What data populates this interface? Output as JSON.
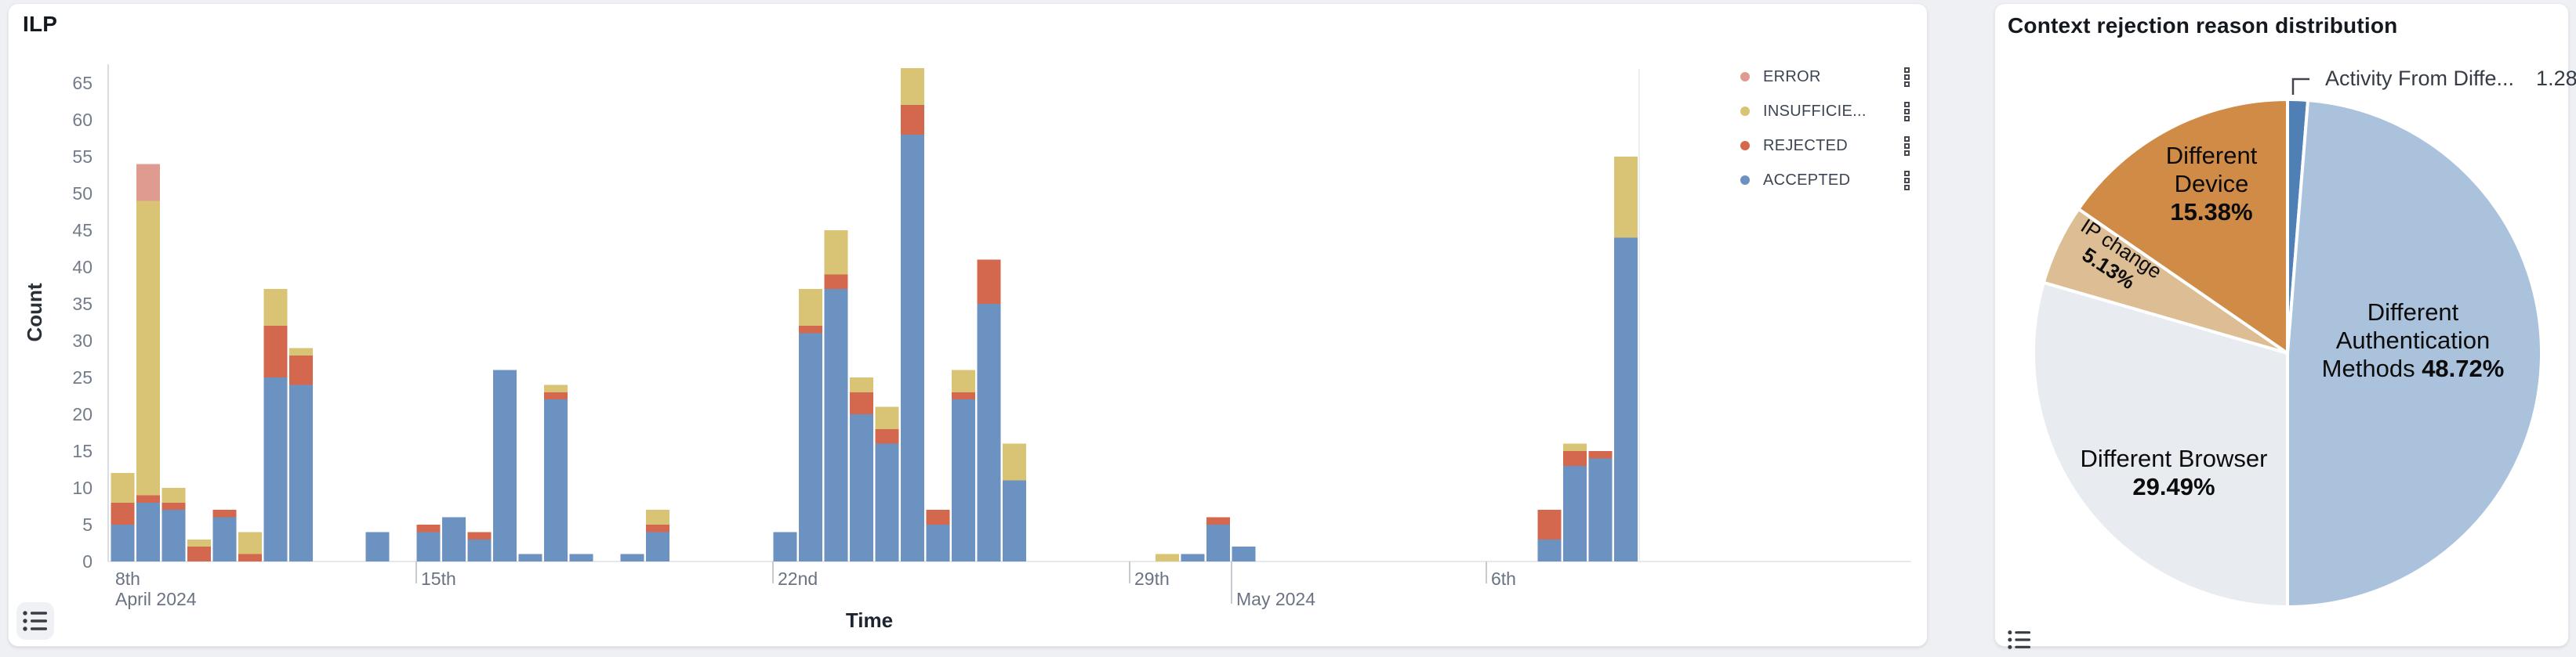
{
  "page": {
    "background": "#eef0f4"
  },
  "ilp_panel": {
    "title": "ILP",
    "y_axis_title": "Count",
    "x_axis_title": "Time",
    "legend_items": [
      {
        "label": "ERROR",
        "color": "#e09b91"
      },
      {
        "label": "INSUFFICIE...",
        "color": "#d8c474"
      },
      {
        "label": "REJECTED",
        "color": "#d4684f"
      },
      {
        "label": "ACCEPTED",
        "color": "#6c92c1"
      }
    ],
    "icons": {
      "legend_row_menu": "kebab-menu-icon",
      "bottom_left": "list-icon"
    }
  },
  "pie_panel": {
    "title": "Context rejection reason distribution",
    "callout": {
      "label": "Activity From Diffe...",
      "pct": "1.28%"
    },
    "icons": {
      "bottom_left": "list-icon"
    }
  },
  "chart_data": [
    {
      "type": "bar",
      "stacked": true,
      "title": "ILP",
      "xlabel": "Time",
      "ylabel": "Count",
      "ylim": [
        0,
        65
      ],
      "y_ticks": [
        0,
        5,
        10,
        15,
        20,
        25,
        30,
        35,
        40,
        45,
        50,
        55,
        60,
        65
      ],
      "x_unit": "12-hour buckets, Apr 9 2024 00:00 through May 9 2024 00:00",
      "x_ticks": [
        {
          "slot": 0,
          "label": "8th",
          "sublabel": "April 2024"
        },
        {
          "slot": 12,
          "label": "15th"
        },
        {
          "slot": 26,
          "label": "22nd"
        },
        {
          "slot": 40,
          "label": "29th"
        },
        {
          "slot": 44,
          "label": "May 2024",
          "month": true
        },
        {
          "slot": 54,
          "label": "6th"
        }
      ],
      "series": [
        {
          "name": "ACCEPTED",
          "color": "#6c92c1"
        },
        {
          "name": "REJECTED",
          "color": "#d4684f"
        },
        {
          "name": "INSUFFICIE...",
          "color": "#d8c474"
        },
        {
          "name": "ERROR",
          "color": "#e09b91"
        }
      ],
      "bars_columns": [
        "slot",
        "ACCEPTED",
        "REJECTED",
        "INSUFFICIENT",
        "ERROR"
      ],
      "bars": [
        [
          0,
          5,
          3,
          4,
          0
        ],
        [
          1,
          8,
          1,
          40,
          5
        ],
        [
          2,
          7,
          1,
          2,
          0
        ],
        [
          3,
          0,
          2,
          1,
          0
        ],
        [
          4,
          6,
          1,
          0,
          0
        ],
        [
          5,
          0,
          1,
          3,
          0
        ],
        [
          6,
          25,
          7,
          5,
          0
        ],
        [
          7,
          24,
          4,
          1,
          0
        ],
        [
          10,
          4,
          0,
          0,
          0
        ],
        [
          12,
          4,
          1,
          0,
          0
        ],
        [
          13,
          6,
          0,
          0,
          0
        ],
        [
          14,
          3,
          1,
          0,
          0
        ],
        [
          15,
          26,
          0,
          0,
          0
        ],
        [
          16,
          1,
          0,
          0,
          0
        ],
        [
          17,
          22,
          1,
          1,
          0
        ],
        [
          18,
          1,
          0,
          0,
          0
        ],
        [
          20,
          1,
          0,
          0,
          0
        ],
        [
          21,
          4,
          1,
          2,
          0
        ],
        [
          26,
          4,
          0,
          0,
          0
        ],
        [
          27,
          31,
          1,
          5,
          0
        ],
        [
          28,
          37,
          2,
          6,
          0
        ],
        [
          29,
          20,
          3,
          2,
          0
        ],
        [
          30,
          16,
          2,
          3,
          0
        ],
        [
          31,
          58,
          4,
          5,
          0
        ],
        [
          32,
          5,
          2,
          0,
          0
        ],
        [
          33,
          22,
          1,
          3,
          0
        ],
        [
          34,
          35,
          6,
          0,
          0
        ],
        [
          35,
          11,
          0,
          5,
          0
        ],
        [
          41,
          0,
          0,
          1,
          0
        ],
        [
          42,
          1,
          0,
          0,
          0
        ],
        [
          43,
          5,
          1,
          0,
          0
        ],
        [
          44,
          2,
          0,
          0,
          0
        ],
        [
          56,
          3,
          4,
          0,
          0
        ],
        [
          57,
          13,
          2,
          1,
          0
        ],
        [
          58,
          14,
          1,
          0,
          0
        ],
        [
          59,
          44,
          0,
          11,
          0
        ]
      ]
    },
    {
      "type": "pie",
      "title": "Context rejection reason distribution",
      "start_angle": "top",
      "direction": "clockwise",
      "slices": [
        {
          "label": "Activity From Diffe...",
          "value_pct": 1.28,
          "pct_text": "1.28%",
          "color": "#4f7fb5",
          "label_placement": "callout"
        },
        {
          "label": "Different Authentication Methods",
          "value_pct": 48.72,
          "pct_text": "48.72%",
          "color": "#abc2dc",
          "label_lines": [
            "Different",
            "Authentication",
            "Methods"
          ],
          "pct_inline_with_last_line": true
        },
        {
          "label": "Different Browser",
          "value_pct": 29.49,
          "pct_text": "29.49%",
          "color": "#e8ecf1",
          "label_lines": [
            "Different Browser"
          ]
        },
        {
          "label": "IP change",
          "value_pct": 5.13,
          "pct_text": "5.13%",
          "color": "#dcbd94",
          "label_lines": [
            "IP change"
          ],
          "label_rotation_deg": 33
        },
        {
          "label": "Different Device",
          "value_pct": 15.38,
          "pct_text": "15.38%",
          "color": "#d08c46",
          "label_lines": [
            "Different",
            "Device"
          ]
        }
      ]
    }
  ]
}
